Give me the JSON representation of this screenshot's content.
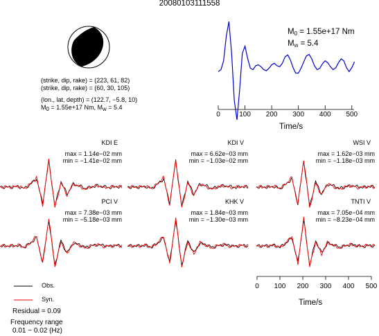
{
  "title": "20080103111558",
  "focal": {
    "line1": "(strike, dip, rake) = (223, 61, 82)",
    "line2": "(strike, dip, rake) = (60, 30, 105)",
    "line3": "(lon., lat, depth) = (122.7, −5.8, 10)",
    "m0_label": "M",
    "m0_sub": "0",
    "m0_value": " = 1.55e+17 Nm, M",
    "mw_sub": "w",
    "mw_value": " = 5.4"
  },
  "stf": {
    "m0_label": "M",
    "m0_sub": "0",
    "m0_value": " = 1.55e+17 Nm",
    "mw_label": "M",
    "mw_sub": "w",
    "mw_value": " = 5.4",
    "xlabel": "Time/s",
    "color": "#0000cc"
  },
  "traces": [
    {
      "station": "KDI E",
      "max": "max = 1.14e−02 mm",
      "min": "min = −1.41e−02 mm"
    },
    {
      "station": "KDI V",
      "max": "max = 6.62e−03 mm",
      "min": "min = −1.03e−02 mm"
    },
    {
      "station": "WSI V",
      "max": "max = 1.62e−03 mm",
      "min": "min = −1.18e−03 mm"
    },
    {
      "station": "PCI V",
      "max": "max = 7.38e−03 mm",
      "min": "min = −5.18e−03 mm"
    },
    {
      "station": "KHK V",
      "max": "max = 1.84e−03 mm",
      "min": "min = −1.30e−03 mm"
    },
    {
      "station": "TNTI V",
      "max": "max = 7.05e−04 mm",
      "min": "min = −8.23e−04 mm"
    }
  ],
  "traces_xaxis": {
    "xlabel": "Time/s"
  },
  "legend": {
    "obs": "Obs.",
    "syn": "Syn.",
    "obs_color": "#000000",
    "syn_color": "#ff0000"
  },
  "residual": "Residual = 0.09",
  "freq_line1": "Frequency range",
  "freq_line2": "0.01 − 0.02 (Hz)",
  "chart_data": [
    {
      "type": "line",
      "title": "",
      "xlabel": "Time/s",
      "ylabel": "",
      "xlim": [
        0,
        510
      ],
      "xticks": [
        0,
        100,
        200,
        300,
        400,
        500
      ],
      "series": [
        {
          "x": [
            0,
            10,
            20,
            30,
            40,
            50,
            60,
            70,
            80,
            90,
            100,
            110,
            120,
            130,
            140,
            150,
            160,
            170,
            180,
            190,
            200,
            210,
            220,
            230,
            240,
            250,
            260,
            270,
            280,
            290,
            300,
            310,
            320,
            330,
            340,
            350,
            360,
            370,
            380,
            390,
            400,
            410,
            420,
            430,
            440,
            450,
            460,
            470,
            480,
            490,
            500,
            510
          ],
          "values": [
            -0.02,
            0.02,
            0.2,
            0.7,
            1.0,
            0.35,
            -0.6,
            -1.0,
            -0.4,
            0.35,
            0.5,
            0.25,
            0.05,
            0.02,
            0.1,
            0.12,
            0.08,
            0.02,
            0.0,
            0.05,
            0.12,
            0.15,
            0.1,
            0.08,
            0.15,
            0.28,
            0.32,
            0.22,
            0.06,
            -0.05,
            -0.05,
            0.05,
            0.18,
            0.3,
            0.33,
            0.24,
            0.1,
            0.02,
            0.05,
            0.14,
            0.2,
            0.16,
            0.08,
            0.02,
            0.06,
            0.16,
            0.24,
            0.2,
            0.06,
            -0.02,
            0.06,
            0.18
          ]
        }
      ]
    },
    {
      "type": "line",
      "title": "",
      "xlabel": "Time/s",
      "ylabel": "",
      "xlim": [
        0,
        510
      ],
      "xticks": [
        0,
        100,
        200,
        300,
        400,
        500
      ],
      "series": [
        {
          "name": "Obs.",
          "values": [
            0,
            0,
            0,
            0.02,
            -0.05,
            0.1,
            0.3,
            -0.6,
            0.95,
            -0.7,
            0.2,
            -0.25,
            0.1,
            0.05,
            -0.05,
            0.0,
            0.05,
            0.02,
            -0.02,
            0.02,
            0.0
          ]
        },
        {
          "name": "Syn.",
          "values": [
            0,
            0,
            0,
            0.03,
            -0.05,
            0.12,
            0.35,
            -0.65,
            1.0,
            -0.75,
            0.15,
            -0.3,
            0.12,
            0.02,
            -0.08,
            0.02,
            0.05,
            -0.02,
            0.0,
            0.02,
            0.0
          ]
        }
      ]
    }
  ]
}
